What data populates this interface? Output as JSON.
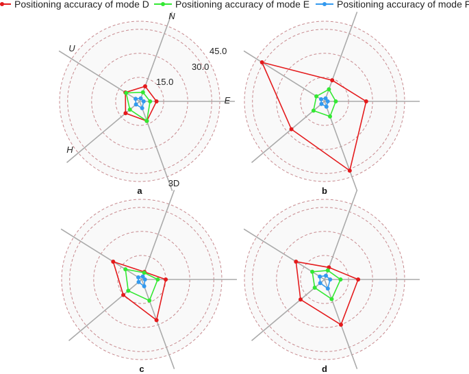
{
  "chart_data": {
    "type": "radar",
    "axes": [
      "N",
      "E",
      "3D",
      "H",
      "U"
    ],
    "ticks": [
      15.0,
      30.0,
      45.0
    ],
    "tick_labels": [
      "15.0",
      "30.0",
      "45.0"
    ],
    "rmax": 50,
    "legend": [
      {
        "name": "Positioning accuracy of mode D",
        "color": "#e41a1c"
      },
      {
        "name": "Positioning accuracy of mode E",
        "color": "#33e833"
      },
      {
        "name": "Positioning accuracy of mode F",
        "color": "#3399ee"
      }
    ],
    "panels": [
      {
        "label": "a",
        "series": [
          {
            "name": "Positioning accuracy of mode D",
            "values": [
              10.0,
              10.5,
              13.0,
              11.5,
              10.5
            ]
          },
          {
            "name": "Positioning accuracy of mode E",
            "values": [
              6.0,
              6.5,
              13.0,
              8.0,
              10.0
            ]
          },
          {
            "name": "Positioning accuracy of mode F",
            "values": [
              2.0,
              2.5,
              4.5,
              3.0,
              3.0
            ]
          }
        ]
      },
      {
        "label": "b",
        "series": [
          {
            "name": "Positioning accuracy of mode D",
            "values": [
              14.0,
              26.0,
              46.0,
              27.0,
              46.0
            ]
          },
          {
            "name": "Positioning accuracy of mode E",
            "values": [
              8.0,
              7.0,
              10.0,
              9.0,
              6.0
            ]
          },
          {
            "name": "Positioning accuracy of mode F",
            "values": [
              2.0,
              2.0,
              3.5,
              2.5,
              2.5
            ]
          }
        ]
      },
      {
        "label": "c",
        "series": [
          {
            "name": "Positioning accuracy of mode D",
            "values": [
              5.0,
              15.0,
              27.0,
              15.0,
              21.0
            ]
          },
          {
            "name": "Positioning accuracy of mode E",
            "values": [
              4.5,
              10.0,
              14.0,
              11.0,
              12.0
            ]
          },
          {
            "name": "Positioning accuracy of mode F",
            "values": [
              2.0,
              2.0,
              4.5,
              2.5,
              2.5
            ]
          }
        ]
      },
      {
        "label": "d",
        "series": [
          {
            "name": "Positioning accuracy of mode D",
            "values": [
              8.0,
              21.0,
              30.0,
              19.5,
              21.0
            ]
          },
          {
            "name": "Positioning accuracy of mode E",
            "values": [
              6.0,
              10.0,
              13.0,
              8.0,
              9.0
            ]
          },
          {
            "name": "Positioning accuracy of mode F",
            "values": [
              2.5,
              3.5,
              6.0,
              3.5,
              3.5
            ]
          }
        ]
      }
    ]
  }
}
